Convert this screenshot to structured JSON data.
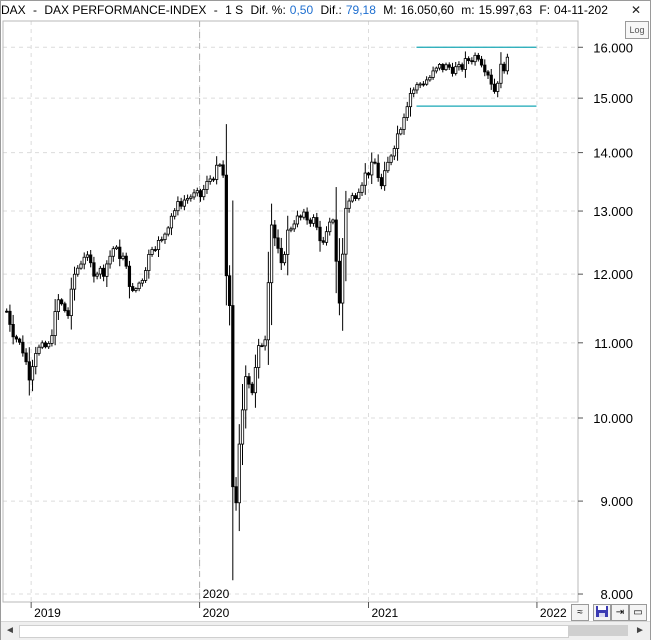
{
  "header": {
    "symbol": "DAX",
    "separator": "-",
    "name": "DAX PERFORMANCE-INDEX",
    "separator2": "-",
    "period": "1 S",
    "dif_pct_label": "Dif. %:",
    "dif_pct_value": "0,50",
    "dif_label": "Dif.:",
    "dif_value": "79,18",
    "max_label": "M:",
    "max_value": "16.050,60",
    "min_label": "m:",
    "min_value": "15.997,63",
    "date_label": "F:",
    "date_value": "04-11-202"
  },
  "controls": {
    "log_label": "Log",
    "close_glyph": "✕",
    "scroll_left_glyph": "◄",
    "scroll_right_glyph": "►",
    "tool1_glyph": "≈",
    "tool2_icon": "save-icon",
    "tool3_glyph": "⇥",
    "tool4_glyph": "▭"
  },
  "colors": {
    "hline": "#18a7b5",
    "candle": "#000000",
    "highlight_value": "#1e6fd0"
  },
  "chart_data": {
    "type": "candlestick",
    "scale": "log",
    "ylim": [
      8000,
      16500
    ],
    "y_ticks": [
      8000,
      9000,
      10000,
      11000,
      12000,
      13000,
      14000,
      15000,
      16000
    ],
    "y_tick_labels": [
      "8.000",
      "9.000",
      "10.000",
      "11.000",
      "12.000",
      "13.000",
      "14.000",
      "15.000",
      "16.000"
    ],
    "x_range": [
      "2018-11-01",
      "2022-03-31"
    ],
    "x_ticks": [
      {
        "date": "2019-01-01",
        "label": "2019"
      },
      {
        "date": "2020-01-01",
        "label": "2020"
      },
      {
        "date": "2021-01-01",
        "label": "2021"
      },
      {
        "date": "2022-01-01",
        "label": "2022"
      }
    ],
    "marker": {
      "date": "2020-01-01",
      "label": "2020"
    },
    "grid": true,
    "horizontal_lines": [
      {
        "value": 16000,
        "start": "2021-04-15",
        "end": "2021-12-31"
      },
      {
        "value": 14850,
        "start": "2021-04-15",
        "end": "2021-12-31"
      }
    ],
    "close_path": [
      [
        "2018-11-09",
        11450
      ],
      [
        "2018-11-23",
        11150
      ],
      [
        "2018-12-14",
        10900
      ],
      [
        "2018-12-28",
        10560
      ],
      [
        "2019-01-11",
        10900
      ],
      [
        "2019-02-08",
        10950
      ],
      [
        "2019-03-01",
        11600
      ],
      [
        "2019-03-22",
        11400
      ],
      [
        "2019-04-05",
        12000
      ],
      [
        "2019-04-26",
        12300
      ],
      [
        "2019-05-17",
        12050
      ],
      [
        "2019-06-07",
        12050
      ],
      [
        "2019-06-28",
        12400
      ],
      [
        "2019-07-19",
        12250
      ],
      [
        "2019-08-09",
        11700
      ],
      [
        "2019-08-30",
        11950
      ],
      [
        "2019-09-20",
        12450
      ],
      [
        "2019-10-11",
        12500
      ],
      [
        "2019-11-01",
        12950
      ],
      [
        "2019-11-22",
        13150
      ],
      [
        "2019-12-13",
        13250
      ],
      [
        "2020-01-03",
        13250
      ],
      [
        "2020-01-24",
        13550
      ],
      [
        "2020-02-14",
        13750
      ],
      [
        "2020-02-21",
        13600
      ],
      [
        "2020-02-28",
        11900
      ],
      [
        "2020-03-06",
        11550
      ],
      [
        "2020-03-13",
        9200
      ],
      [
        "2020-03-20",
        8930
      ],
      [
        "2020-03-27",
        9630
      ],
      [
        "2020-04-10",
        10600
      ],
      [
        "2020-04-24",
        10350
      ],
      [
        "2020-05-08",
        10900
      ],
      [
        "2020-05-22",
        11100
      ],
      [
        "2020-06-05",
        12800
      ],
      [
        "2020-06-26",
        12100
      ],
      [
        "2020-07-10",
        12650
      ],
      [
        "2020-07-24",
        12850
      ],
      [
        "2020-08-14",
        12900
      ],
      [
        "2020-09-04",
        12850
      ],
      [
        "2020-09-25",
        12450
      ],
      [
        "2020-10-16",
        12900
      ],
      [
        "2020-10-30",
        11550
      ],
      [
        "2020-11-13",
        13080
      ],
      [
        "2020-12-04",
        13300
      ],
      [
        "2020-12-24",
        13600
      ],
      [
        "2021-01-15",
        13800
      ],
      [
        "2021-01-29",
        13400
      ],
      [
        "2021-02-19",
        13990
      ],
      [
        "2021-03-12",
        14500
      ],
      [
        "2021-04-01",
        15100
      ],
      [
        "2021-04-23",
        15280
      ],
      [
        "2021-05-14",
        15400
      ],
      [
        "2021-06-04",
        15600
      ],
      [
        "2021-06-25",
        15600
      ],
      [
        "2021-07-16",
        15550
      ],
      [
        "2021-08-06",
        15750
      ],
      [
        "2021-08-27",
        15850
      ],
      [
        "2021-09-17",
        15500
      ],
      [
        "2021-10-01",
        15150
      ],
      [
        "2021-10-15",
        15580
      ],
      [
        "2021-10-29",
        15690
      ],
      [
        "2021-11-04",
        16050
      ]
    ]
  }
}
